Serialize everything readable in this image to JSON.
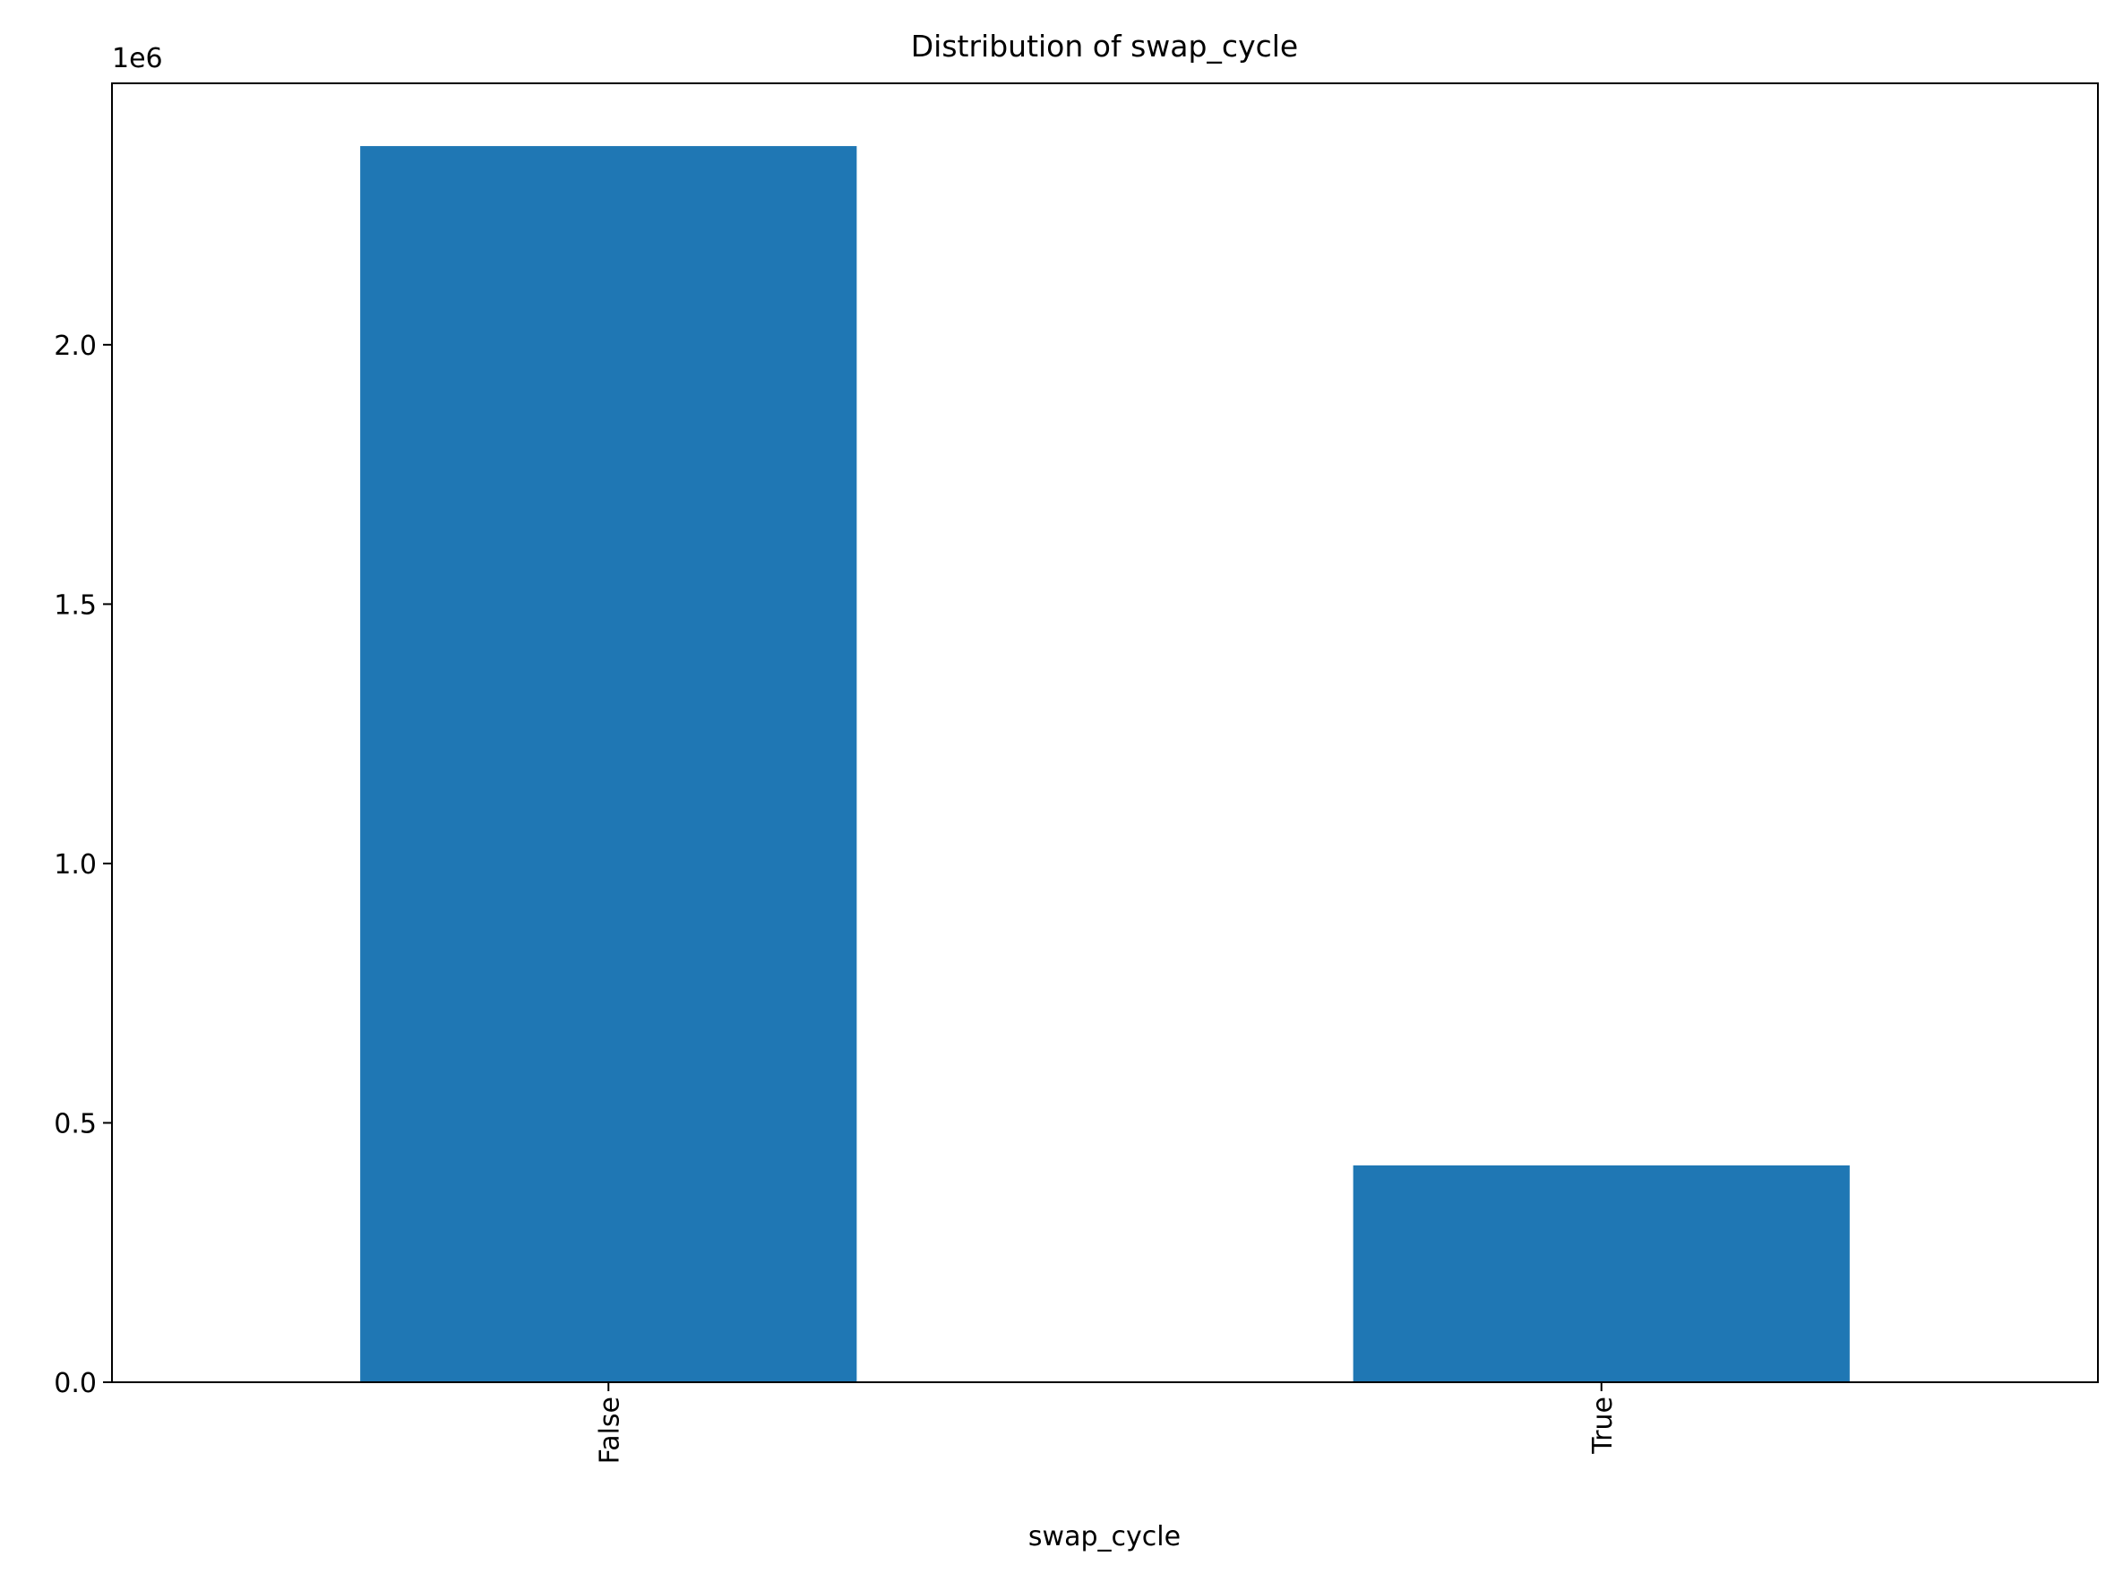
{
  "chart_data": {
    "type": "bar",
    "title": "Distribution of swap_cycle",
    "xlabel": "swap_cycle",
    "ylabel": "",
    "categories": [
      "False",
      "True"
    ],
    "values": [
      2383000,
      418000
    ],
    "ylim": [
      0,
      2504000
    ],
    "yticks": [
      0.0,
      0.5,
      1.0,
      1.5,
      2.0
    ],
    "ytick_labels": [
      "0.0",
      "0.5",
      "1.0",
      "1.5",
      "2.0"
    ],
    "offset_label": "1e6",
    "bar_color": "#1f77b4",
    "grid": false,
    "legend": "none"
  }
}
